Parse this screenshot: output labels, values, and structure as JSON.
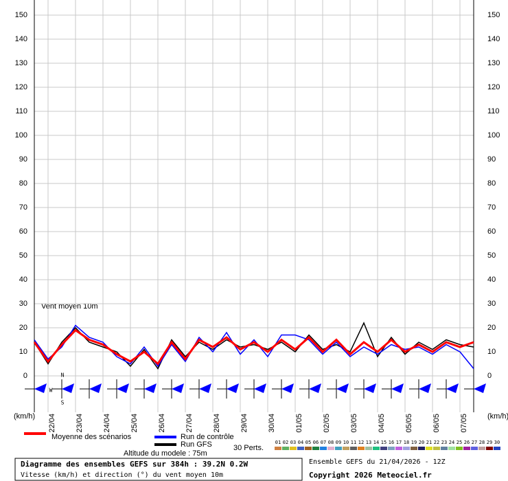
{
  "chart_data": {
    "type": "line",
    "annotation": "Vent moyen 10m",
    "y_unit_left": "(km/h)",
    "y_unit_right": "(km/h)",
    "x": [
      0,
      12,
      24,
      36,
      48,
      60,
      72,
      84,
      96,
      108,
      120,
      132,
      144,
      156,
      168,
      180,
      192,
      204,
      216,
      228,
      240,
      252,
      264,
      276,
      288,
      300,
      312,
      324,
      336,
      348,
      360,
      372,
      384
    ],
    "xlim": [
      0,
      384
    ],
    "xticks": [
      {
        "value": 12,
        "label": "22/04"
      },
      {
        "value": 36,
        "label": "23/04"
      },
      {
        "value": 60,
        "label": "24/04"
      },
      {
        "value": 84,
        "label": "25/04"
      },
      {
        "value": 108,
        "label": "26/04"
      },
      {
        "value": 132,
        "label": "27/04"
      },
      {
        "value": 156,
        "label": "28/04"
      },
      {
        "value": 180,
        "label": "29/04"
      },
      {
        "value": 204,
        "label": "30/04"
      },
      {
        "value": 228,
        "label": "01/05"
      },
      {
        "value": 252,
        "label": "02/05"
      },
      {
        "value": 276,
        "label": "03/05"
      },
      {
        "value": 300,
        "label": "04/05"
      },
      {
        "value": 324,
        "label": "05/05"
      },
      {
        "value": 348,
        "label": "06/05"
      },
      {
        "value": 372,
        "label": "07/05"
      }
    ],
    "ylim": [
      0,
      150
    ],
    "yticks": [
      0,
      10,
      20,
      30,
      40,
      50,
      60,
      70,
      80,
      90,
      100,
      110,
      120,
      130,
      140,
      150
    ],
    "grid": true,
    "series": [
      {
        "name": "Moyenne des scénarios",
        "color": "#ff0000",
        "values": [
          14,
          6,
          13,
          19,
          15,
          13,
          9,
          6,
          10,
          5,
          14,
          7,
          15,
          12,
          16,
          11,
          14,
          10,
          15,
          11,
          16,
          10,
          15,
          9,
          14,
          10,
          15,
          10,
          13,
          10,
          14,
          12,
          14
        ]
      },
      {
        "name": "Run de contrôle",
        "color": "#0000ff",
        "values": [
          15,
          7,
          12,
          21,
          16,
          14,
          8,
          5,
          12,
          4,
          13,
          6,
          16,
          10,
          18,
          9,
          15,
          8,
          17,
          17,
          15,
          9,
          14,
          8,
          12,
          9,
          13,
          11,
          12,
          9,
          13,
          10,
          3
        ]
      },
      {
        "name": "Run GFS",
        "color": "#000000",
        "values": [
          14,
          5,
          14,
          20,
          14,
          12,
          10,
          4,
          11,
          3,
          15,
          8,
          14,
          11,
          15,
          12,
          13,
          11,
          14,
          10,
          17,
          11,
          13,
          10,
          22,
          8,
          16,
          9,
          14,
          11,
          15,
          13,
          12
        ]
      }
    ],
    "perturbations_label": "30 Perts.",
    "perturbations": [
      {
        "name": "01",
        "color": "#d08040"
      },
      {
        "name": "02",
        "color": "#60b060"
      },
      {
        "name": "03",
        "color": "#e0c020"
      },
      {
        "name": "04",
        "color": "#4060c0"
      },
      {
        "name": "05",
        "color": "#a06020"
      },
      {
        "name": "06",
        "color": "#208040"
      },
      {
        "name": "07",
        "color": "#2080e0"
      },
      {
        "name": "08",
        "color": "#e0b0d0"
      },
      {
        "name": "09",
        "color": "#40a0c0"
      },
      {
        "name": "10",
        "color": "#c0a060"
      },
      {
        "name": "11",
        "color": "#606060"
      },
      {
        "name": "12",
        "color": "#e08020"
      },
      {
        "name": "13",
        "color": "#a0c0a0"
      },
      {
        "name": "14",
        "color": "#20c080"
      },
      {
        "name": "15",
        "color": "#404080"
      },
      {
        "name": "16",
        "color": "#80a0c0"
      },
      {
        "name": "17",
        "color": "#c060e0"
      },
      {
        "name": "18",
        "color": "#a0a0e0"
      },
      {
        "name": "19",
        "color": "#806040"
      },
      {
        "name": "20",
        "color": "#202060"
      },
      {
        "name": "21",
        "color": "#e0e020"
      },
      {
        "name": "22",
        "color": "#c0c040"
      },
      {
        "name": "23",
        "color": "#6080a0"
      },
      {
        "name": "24",
        "color": "#a0e0a0"
      },
      {
        "name": "25",
        "color": "#80c020"
      },
      {
        "name": "26",
        "color": "#a020a0"
      },
      {
        "name": "27",
        "color": "#6060e0"
      },
      {
        "name": "28",
        "color": "#c0a0a0"
      },
      {
        "name": "29",
        "color": "#800000"
      },
      {
        "name": "30",
        "color": "#2040c0"
      }
    ],
    "altitude": "Altitude du modele : 75m",
    "footer_title": "Diagramme des ensembles GEFS sur 384h : 39.2N 0.2W",
    "footer_subtitle": "Vitesse (km/h) et direction (°) du vent moyen 10m",
    "run_info": "Ensemble GEFS du 21/04/2026 - 12Z",
    "copyright": "Copyright 2026 Meteociel.fr",
    "compass": {
      "north": "N",
      "south": "S",
      "west": "W"
    }
  }
}
